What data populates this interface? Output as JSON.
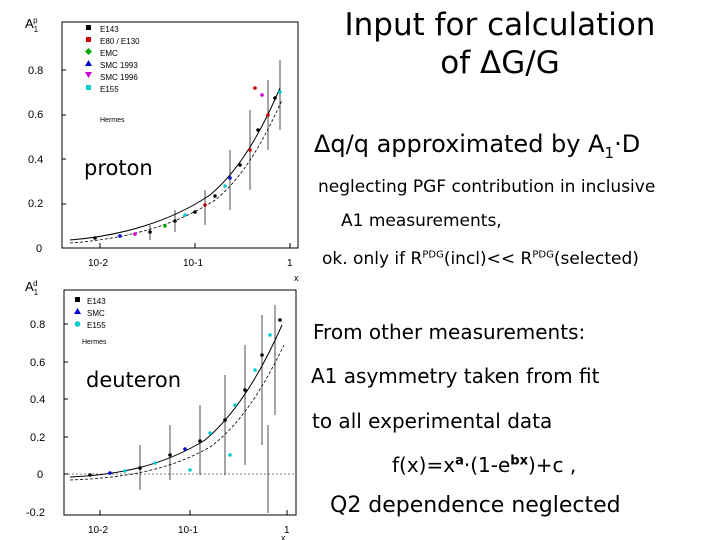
{
  "slide": {
    "title_line1": "Input for calculation",
    "title_line2": "of ΔG/G",
    "main_point": {
      "prefix": "Δq/q approximated by A",
      "sub": "1",
      "suffix": "·D"
    },
    "notes": {
      "line1": "neglecting PGF contribution in inclusive",
      "line2": "A1 measurements,",
      "line3_a": "ok. only if R",
      "line3_sup1": "PDG",
      "line3_b": "(incl)<< R",
      "line3_sup2": "PDG",
      "line3_c": "(selected)"
    },
    "other": {
      "line1": "From other measurements:",
      "line2": "A1 asymmetry taken from fit",
      "line3": "to all experimental data",
      "formula_a": "f(x)=x",
      "formula_sup_a": "a",
      "formula_b": "·(1-e",
      "formula_sup_b": "bx",
      "formula_c": ")+c  ,",
      "line5": "Q2 dependence neglected"
    }
  },
  "plots": {
    "proton": {
      "label": "proton",
      "ylabel": "A",
      "ylabel_sub": "1",
      "ylabel_sup": "p",
      "xlabel": "x",
      "yticks": [
        "0",
        "0.2",
        "0.4",
        "0.6",
        "0.8"
      ],
      "xticks": [
        "10-2",
        "10-1",
        "1"
      ],
      "legend": [
        {
          "name": "E143",
          "color": "#000000"
        },
        {
          "name": "E80 / E130",
          "color": "#cc0000"
        },
        {
          "name": "EMC",
          "color": "#00aa00"
        },
        {
          "name": "SMC 1993",
          "color": "#0000cc"
        },
        {
          "name": "SMC 1996",
          "color": "#cc00cc"
        },
        {
          "name": "E155",
          "color": "#00cccc"
        },
        {
          "name": "Hermes",
          "color": "#000000"
        }
      ]
    },
    "deuteron": {
      "label": "deuteron",
      "ylabel": "A",
      "ylabel_sub": "1",
      "ylabel_sup": "d",
      "xlabel": "x",
      "yticks": [
        "-0.2",
        "0",
        "0.2",
        "0.4",
        "0.6",
        "0.8"
      ],
      "xticks": [
        "10-2",
        "10-1",
        "1"
      ],
      "legend": [
        {
          "name": "E143",
          "color": "#000000"
        },
        {
          "name": "SMC",
          "color": "#0000cc"
        },
        {
          "name": "E155",
          "color": "#00cccc"
        },
        {
          "name": "Hermes",
          "color": "#000000"
        }
      ]
    }
  }
}
